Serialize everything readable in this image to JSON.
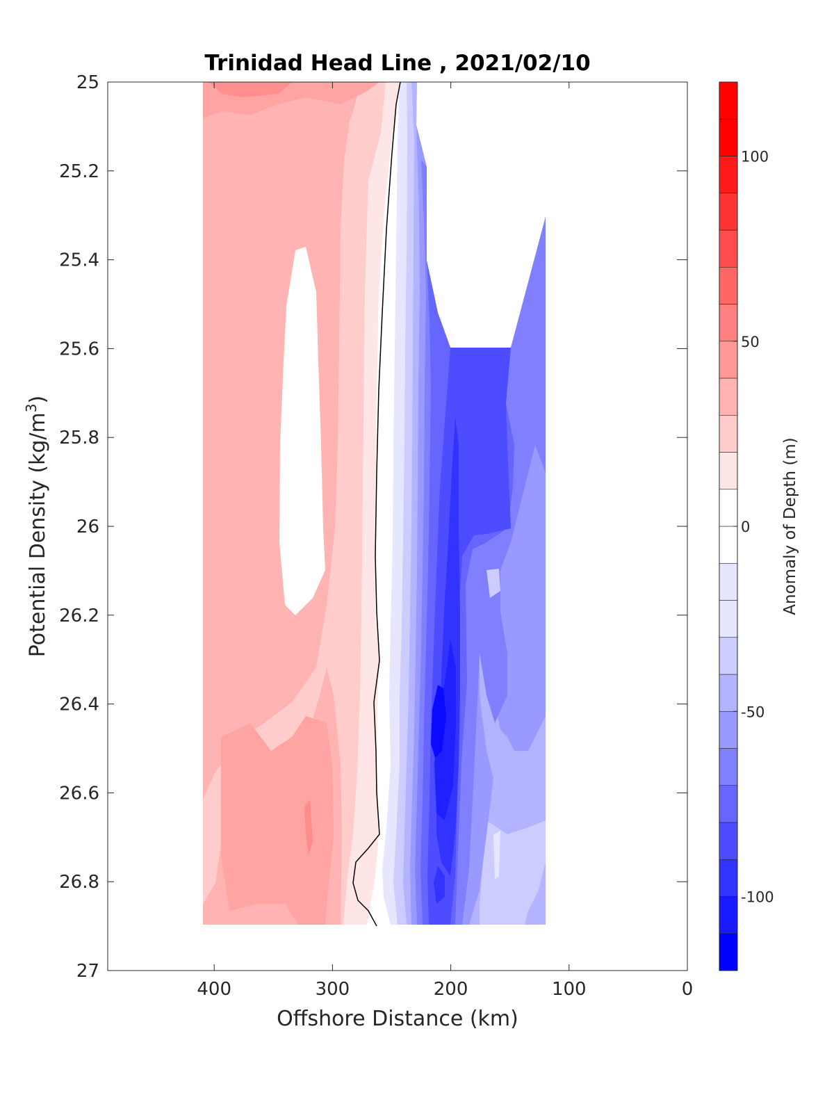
{
  "chart_data": {
    "type": "contour",
    "title": "Trinidad Head Line , 2021/02/10",
    "xlabel": "Offshore Distance (km)",
    "ylabel_main": "Potential Density (kg/m",
    "ylabel_sup": "3",
    "ylabel_close": ")",
    "xlim": [
      490,
      0
    ],
    "ylim": [
      25,
      27
    ],
    "y_reversed": true,
    "x_ticks": [
      "400",
      "300",
      "200",
      "100",
      "0"
    ],
    "x_tick_values": [
      400,
      300,
      200,
      100,
      0
    ],
    "y_ticks": [
      "25",
      "25.2",
      "25.4",
      "25.6",
      "25.8",
      "26",
      "26.2",
      "26.4",
      "26.6",
      "26.8",
      "27"
    ],
    "y_tick_values": [
      25,
      25.2,
      25.4,
      25.6,
      25.8,
      26,
      26.2,
      26.4,
      26.6,
      26.8,
      27
    ],
    "colorbar": {
      "label": "Anomaly of Depth (m)",
      "range": [
        -120,
        120
      ],
      "step": 10,
      "tick_labels": [
        "100",
        "50",
        "0",
        "-50",
        "-100"
      ],
      "tick_values": [
        100,
        50,
        0,
        -50,
        -100
      ],
      "colors": [
        "#0000ff",
        "#1a1aff",
        "#3333ff",
        "#4d4dff",
        "#6666ff",
        "#8080ff",
        "#9999ff",
        "#b3b3ff",
        "#ccccff",
        "#e6e6ff",
        "#ffffff",
        "#ffffff",
        "#ffe6e6",
        "#ffcccc",
        "#ffb3b3",
        "#ff9999",
        "#ff8080",
        "#ff6666",
        "#ff4d4d",
        "#ff3333",
        "#ff1a1a",
        "#ff0000"
      ]
    },
    "grid": false,
    "data_extent": {
      "x_range": [
        410,
        120
      ],
      "y_range": [
        25,
        26.9
      ],
      "missing_region": "upper right, x < 235 km above density 25.6"
    },
    "zero_contour": {
      "x": [
        243,
        248,
        253,
        258,
        262,
        265,
        265,
        264,
        265,
        262,
        263,
        266,
        264,
        260,
        258,
        268,
        282,
        285,
        280,
        258
      ],
      "y": [
        25.0,
        25.1,
        25.3,
        25.5,
        25.7,
        25.9,
        26.1,
        26.3,
        26.4,
        26.5,
        26.6,
        26.7,
        26.8,
        26.9,
        26.95,
        26.9,
        26.85,
        26.8,
        26.75,
        26.7
      ]
    },
    "anomaly_summary": {
      "positive_max_m": 60,
      "negative_min_m": -110,
      "positive_side": "offshore, x 300-410 km",
      "negative_side": "inshore, x 120-240 km"
    }
  }
}
